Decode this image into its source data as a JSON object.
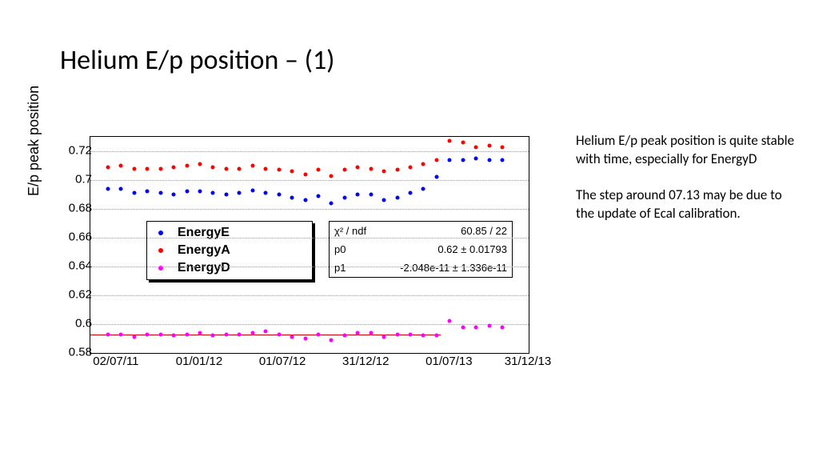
{
  "title": "Helium E/p position – (1)",
  "ylabel": "E/p peak position",
  "chart": {
    "type": "scatter",
    "ylim": [
      0.58,
      0.73
    ],
    "yticks": [
      0.58,
      0.6,
      0.62,
      0.64,
      0.66,
      0.68,
      0.7,
      0.72
    ],
    "xticks": [
      {
        "x": 0.06,
        "label": "02/07/11"
      },
      {
        "x": 0.25,
        "label": "01/01/12"
      },
      {
        "x": 0.44,
        "label": "01/07/12"
      },
      {
        "x": 0.63,
        "label": "31/12/12"
      },
      {
        "x": 0.82,
        "label": "01/07/13"
      },
      {
        "x": 1.0,
        "label": "31/12/13"
      }
    ],
    "grid_color": "#999999",
    "background_color": "#ffffff",
    "series": [
      {
        "name": "EnergyE",
        "color": "#0000ff",
        "points": [
          {
            "x": 0.04,
            "y": 0.694
          },
          {
            "x": 0.07,
            "y": 0.694
          },
          {
            "x": 0.1,
            "y": 0.691
          },
          {
            "x": 0.13,
            "y": 0.692
          },
          {
            "x": 0.16,
            "y": 0.691
          },
          {
            "x": 0.19,
            "y": 0.69
          },
          {
            "x": 0.22,
            "y": 0.692
          },
          {
            "x": 0.25,
            "y": 0.692
          },
          {
            "x": 0.28,
            "y": 0.691
          },
          {
            "x": 0.31,
            "y": 0.69
          },
          {
            "x": 0.34,
            "y": 0.691
          },
          {
            "x": 0.37,
            "y": 0.693
          },
          {
            "x": 0.4,
            "y": 0.691
          },
          {
            "x": 0.43,
            "y": 0.69
          },
          {
            "x": 0.46,
            "y": 0.688
          },
          {
            "x": 0.49,
            "y": 0.686
          },
          {
            "x": 0.52,
            "y": 0.689
          },
          {
            "x": 0.55,
            "y": 0.684
          },
          {
            "x": 0.58,
            "y": 0.688
          },
          {
            "x": 0.61,
            "y": 0.69
          },
          {
            "x": 0.64,
            "y": 0.69
          },
          {
            "x": 0.67,
            "y": 0.686
          },
          {
            "x": 0.7,
            "y": 0.688
          },
          {
            "x": 0.73,
            "y": 0.691
          },
          {
            "x": 0.76,
            "y": 0.694
          },
          {
            "x": 0.79,
            "y": 0.702
          },
          {
            "x": 0.82,
            "y": 0.714
          },
          {
            "x": 0.85,
            "y": 0.714
          },
          {
            "x": 0.88,
            "y": 0.715
          },
          {
            "x": 0.91,
            "y": 0.714
          },
          {
            "x": 0.94,
            "y": 0.714
          }
        ]
      },
      {
        "name": "EnergyA",
        "color": "#ff0000",
        "points": [
          {
            "x": 0.04,
            "y": 0.709
          },
          {
            "x": 0.07,
            "y": 0.71
          },
          {
            "x": 0.1,
            "y": 0.708
          },
          {
            "x": 0.13,
            "y": 0.708
          },
          {
            "x": 0.16,
            "y": 0.708
          },
          {
            "x": 0.19,
            "y": 0.709
          },
          {
            "x": 0.22,
            "y": 0.71
          },
          {
            "x": 0.25,
            "y": 0.711
          },
          {
            "x": 0.28,
            "y": 0.709
          },
          {
            "x": 0.31,
            "y": 0.708
          },
          {
            "x": 0.34,
            "y": 0.708
          },
          {
            "x": 0.37,
            "y": 0.71
          },
          {
            "x": 0.4,
            "y": 0.708
          },
          {
            "x": 0.43,
            "y": 0.707
          },
          {
            "x": 0.46,
            "y": 0.706
          },
          {
            "x": 0.49,
            "y": 0.704
          },
          {
            "x": 0.52,
            "y": 0.707
          },
          {
            "x": 0.55,
            "y": 0.703
          },
          {
            "x": 0.58,
            "y": 0.707
          },
          {
            "x": 0.61,
            "y": 0.709
          },
          {
            "x": 0.64,
            "y": 0.708
          },
          {
            "x": 0.67,
            "y": 0.706
          },
          {
            "x": 0.7,
            "y": 0.707
          },
          {
            "x": 0.73,
            "y": 0.709
          },
          {
            "x": 0.76,
            "y": 0.711
          },
          {
            "x": 0.79,
            "y": 0.714
          },
          {
            "x": 0.82,
            "y": 0.727
          },
          {
            "x": 0.85,
            "y": 0.726
          },
          {
            "x": 0.88,
            "y": 0.723
          },
          {
            "x": 0.91,
            "y": 0.724
          },
          {
            "x": 0.94,
            "y": 0.723
          }
        ]
      },
      {
        "name": "EnergyD",
        "color": "#ff00ff",
        "points": [
          {
            "x": 0.04,
            "y": 0.593
          },
          {
            "x": 0.07,
            "y": 0.593
          },
          {
            "x": 0.1,
            "y": 0.591
          },
          {
            "x": 0.13,
            "y": 0.593
          },
          {
            "x": 0.16,
            "y": 0.593
          },
          {
            "x": 0.19,
            "y": 0.592
          },
          {
            "x": 0.22,
            "y": 0.593
          },
          {
            "x": 0.25,
            "y": 0.594
          },
          {
            "x": 0.28,
            "y": 0.592
          },
          {
            "x": 0.31,
            "y": 0.593
          },
          {
            "x": 0.34,
            "y": 0.593
          },
          {
            "x": 0.37,
            "y": 0.594
          },
          {
            "x": 0.4,
            "y": 0.595
          },
          {
            "x": 0.43,
            "y": 0.593
          },
          {
            "x": 0.46,
            "y": 0.591
          },
          {
            "x": 0.49,
            "y": 0.59
          },
          {
            "x": 0.52,
            "y": 0.593
          },
          {
            "x": 0.55,
            "y": 0.589
          },
          {
            "x": 0.58,
            "y": 0.592
          },
          {
            "x": 0.61,
            "y": 0.594
          },
          {
            "x": 0.64,
            "y": 0.594
          },
          {
            "x": 0.67,
            "y": 0.591
          },
          {
            "x": 0.7,
            "y": 0.593
          },
          {
            "x": 0.73,
            "y": 0.593
          },
          {
            "x": 0.76,
            "y": 0.592
          },
          {
            "x": 0.79,
            "y": 0.592
          },
          {
            "x": 0.82,
            "y": 0.602
          },
          {
            "x": 0.85,
            "y": 0.598
          },
          {
            "x": 0.88,
            "y": 0.598
          },
          {
            "x": 0.91,
            "y": 0.599
          },
          {
            "x": 0.94,
            "y": 0.598
          }
        ]
      }
    ],
    "fit_line": {
      "y": 0.593,
      "x0": 0.0,
      "x1": 0.8,
      "color": "#cc0000"
    }
  },
  "legend": {
    "items": [
      {
        "label": "EnergyE",
        "color": "#0000ff"
      },
      {
        "label": "EnergyA",
        "color": "#ff0000"
      },
      {
        "label": "EnergyD",
        "color": "#ff00ff"
      }
    ]
  },
  "fitbox": {
    "rows": [
      {
        "name": "χ² / ndf",
        "value": "60.85 / 22"
      },
      {
        "name": "p0",
        "value": "0.62 ± 0.01793"
      },
      {
        "name": "p1",
        "value": "-2.048e-11 ± 1.336e-11"
      }
    ]
  },
  "commentary": {
    "p1": "Helium E/p peak position is quite stable with time, especially for EnergyD",
    "p2": "The step around 07.13 may be due to the update of Ecal calibration."
  }
}
